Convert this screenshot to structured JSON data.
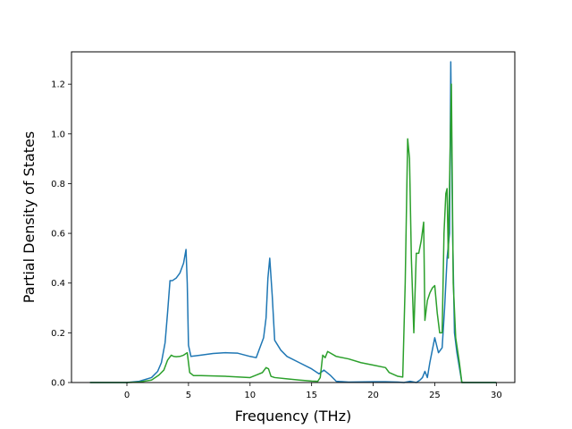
{
  "chart_data": {
    "type": "line",
    "xlabel": "Frequency (THz)",
    "ylabel": "Partial Density of States",
    "xlim": [
      -4.5,
      31.5
    ],
    "ylim": [
      0,
      1.33
    ],
    "xticks": [
      0,
      5,
      10,
      15,
      20,
      25,
      30
    ],
    "yticks": [
      0.0,
      0.2,
      0.4,
      0.6,
      0.8,
      1.0,
      1.2
    ],
    "xtick_labels": [
      "0",
      "5",
      "10",
      "15",
      "20",
      "25",
      "30"
    ],
    "ytick_labels": [
      "0.0",
      "0.2",
      "0.4",
      "0.6",
      "0.8",
      "1.0",
      "1.2"
    ],
    "grid": false,
    "legend": false,
    "series": [
      {
        "color": "#1f77b4",
        "x": [
          -3,
          0,
          1,
          2,
          2.5,
          2.8,
          3.1,
          3.3,
          3.5,
          3.7,
          4.0,
          4.3,
          4.6,
          4.8,
          4.9,
          5.0,
          5.2,
          6,
          7,
          8,
          9,
          10,
          10.5,
          10.8,
          11.1,
          11.3,
          11.45,
          11.6,
          11.8,
          12,
          12.5,
          13,
          14,
          15,
          15.6,
          16,
          16.5,
          17,
          18,
          20,
          21,
          22,
          22.5,
          23,
          23.5,
          23.8,
          24.0,
          24.2,
          24.4,
          24.6,
          24.8,
          25.0,
          25.3,
          25.6,
          25.8,
          26.0,
          26.1,
          26.2,
          26.3,
          26.45,
          26.6,
          26.8,
          27.2,
          28,
          30
        ],
        "y": [
          0.0,
          0.0,
          0.005,
          0.02,
          0.045,
          0.08,
          0.16,
          0.28,
          0.41,
          0.41,
          0.42,
          0.44,
          0.48,
          0.535,
          0.4,
          0.15,
          0.105,
          0.11,
          0.117,
          0.12,
          0.118,
          0.105,
          0.1,
          0.14,
          0.18,
          0.26,
          0.42,
          0.5,
          0.35,
          0.17,
          0.13,
          0.105,
          0.08,
          0.055,
          0.035,
          0.05,
          0.03,
          0.005,
          0.002,
          0.003,
          0.003,
          0.002,
          0.0,
          0.005,
          0.0,
          0.01,
          0.02,
          0.045,
          0.02,
          0.08,
          0.13,
          0.18,
          0.12,
          0.14,
          0.3,
          0.5,
          0.55,
          0.6,
          1.29,
          0.6,
          0.2,
          0.12,
          0.0,
          0.0,
          0.0
        ]
      },
      {
        "color": "#2ca02c",
        "x": [
          -3,
          0,
          1,
          2,
          2.6,
          3.0,
          3.3,
          3.6,
          3.8,
          4.0,
          4.3,
          4.6,
          4.9,
          5.1,
          5.4,
          6,
          8,
          10,
          10.5,
          11.0,
          11.3,
          11.5,
          11.7,
          12,
          13,
          14,
          15,
          15.5,
          15.7,
          15.9,
          16.1,
          16.3,
          17,
          18,
          19,
          20,
          21,
          21.3,
          22,
          22.4,
          22.6,
          22.8,
          22.95,
          23.1,
          23.3,
          23.5,
          23.7,
          23.9,
          24.1,
          24.2,
          24.4,
          24.6,
          24.8,
          25.0,
          25.2,
          25.4,
          25.6,
          25.75,
          25.9,
          26.0,
          26.1,
          26.2,
          26.35,
          26.5,
          26.7,
          27.0,
          27.2,
          28,
          30
        ],
        "y": [
          0.0,
          0.0,
          0.002,
          0.01,
          0.03,
          0.05,
          0.09,
          0.11,
          0.105,
          0.104,
          0.105,
          0.11,
          0.12,
          0.04,
          0.028,
          0.028,
          0.025,
          0.02,
          0.03,
          0.04,
          0.06,
          0.055,
          0.025,
          0.02,
          0.015,
          0.01,
          0.006,
          0.005,
          0.02,
          0.11,
          0.1,
          0.125,
          0.105,
          0.095,
          0.08,
          0.07,
          0.06,
          0.04,
          0.025,
          0.022,
          0.4,
          0.98,
          0.9,
          0.5,
          0.2,
          0.52,
          0.52,
          0.57,
          0.645,
          0.25,
          0.33,
          0.36,
          0.38,
          0.39,
          0.28,
          0.2,
          0.2,
          0.6,
          0.76,
          0.78,
          0.5,
          0.8,
          1.2,
          0.4,
          0.18,
          0.08,
          0.0,
          0.0,
          0.0
        ]
      }
    ]
  }
}
